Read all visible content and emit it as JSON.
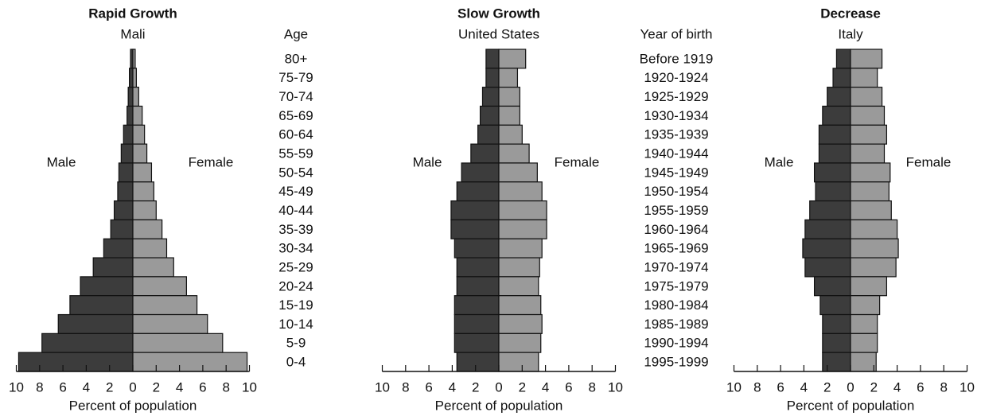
{
  "chart_data": [
    {
      "type": "pyramid",
      "title": "Rapid Growth",
      "subtitle": "Mali",
      "category_title": "Age",
      "categories": [
        "80+",
        "75-79",
        "70-74",
        "65-69",
        "60-64",
        "55-59",
        "50-54",
        "45-49",
        "40-44",
        "35-39",
        "30-34",
        "25-29",
        "20-24",
        "15-19",
        "10-14",
        "5-9",
        "0-4"
      ],
      "series": [
        {
          "name": "Male",
          "color": "#3c3c3c",
          "values": [
            0.2,
            0.3,
            0.4,
            0.5,
            0.8,
            1.0,
            1.2,
            1.3,
            1.6,
            1.9,
            2.5,
            3.4,
            4.5,
            5.4,
            6.4,
            7.8,
            9.8
          ]
        },
        {
          "name": "Female",
          "color": "#9a9a9a",
          "values": [
            0.2,
            0.3,
            0.5,
            0.8,
            1.0,
            1.2,
            1.6,
            1.8,
            2.0,
            2.5,
            2.9,
            3.5,
            4.6,
            5.5,
            6.4,
            7.7,
            9.8
          ]
        }
      ],
      "xlabel": "Percent of population",
      "xlim": [
        -10,
        10
      ],
      "xticks": [
        {
          "value": -10,
          "label": "10"
        },
        {
          "value": -8,
          "label": "8"
        },
        {
          "value": -6,
          "label": "6"
        },
        {
          "value": -4,
          "label": "4"
        },
        {
          "value": -2,
          "label": "2"
        },
        0,
        2,
        4,
        6,
        8,
        10
      ]
    },
    {
      "type": "pyramid",
      "title": "Slow Growth",
      "subtitle": "United States",
      "category_title": "Year of birth",
      "categories": [
        "Before 1919",
        "1920-1924",
        "1925-1929",
        "1930-1934",
        "1935-1939",
        "1940-1944",
        "1945-1949",
        "1950-1954",
        "1955-1959",
        "1960-1964",
        "1965-1969",
        "1970-1974",
        "1975-1979",
        "1980-1984",
        "1985-1989",
        "1990-1994",
        "1995-1999"
      ],
      "series": [
        {
          "name": "Male",
          "color": "#3c3c3c",
          "values": [
            1.1,
            1.1,
            1.4,
            1.6,
            1.8,
            2.4,
            3.2,
            3.6,
            4.1,
            4.1,
            3.8,
            3.6,
            3.6,
            3.8,
            3.8,
            3.8,
            3.6
          ]
        },
        {
          "name": "Female",
          "color": "#9a9a9a",
          "values": [
            2.3,
            1.6,
            1.8,
            1.8,
            2.0,
            2.6,
            3.3,
            3.7,
            4.1,
            4.1,
            3.7,
            3.5,
            3.4,
            3.6,
            3.7,
            3.6,
            3.4
          ]
        }
      ],
      "xlabel": "Percent of population",
      "xlim": [
        -10,
        10
      ],
      "xticks": [
        {
          "value": -10,
          "label": "10"
        },
        {
          "value": -8,
          "label": "8"
        },
        {
          "value": -6,
          "label": "6"
        },
        {
          "value": -4,
          "label": "4"
        },
        {
          "value": -2,
          "label": "2"
        },
        0,
        2,
        4,
        6,
        8,
        10
      ]
    },
    {
      "type": "pyramid",
      "title": "Decrease",
      "subtitle": "Italy",
      "series": [
        {
          "name": "Male",
          "color": "#3c3c3c",
          "values": [
            1.2,
            1.5,
            2.0,
            2.4,
            2.7,
            2.7,
            3.1,
            3.0,
            3.5,
            3.9,
            4.1,
            3.9,
            3.1,
            2.6,
            2.4,
            2.4,
            2.4
          ]
        },
        {
          "name": "Female",
          "color": "#9a9a9a",
          "values": [
            2.7,
            2.3,
            2.7,
            2.9,
            3.1,
            2.9,
            3.4,
            3.3,
            3.5,
            4.0,
            4.1,
            3.9,
            3.1,
            2.5,
            2.3,
            2.3,
            2.2
          ]
        }
      ],
      "xlabel": "Percent of population",
      "xlim": [
        -10,
        10
      ],
      "xticks": [
        {
          "value": -10,
          "label": "10"
        },
        {
          "value": -8,
          "label": "8"
        },
        {
          "value": -6,
          "label": "6"
        },
        {
          "value": -4,
          "label": "4"
        },
        {
          "value": -2,
          "label": "2"
        },
        0,
        2,
        4,
        6,
        8,
        10
      ]
    }
  ]
}
